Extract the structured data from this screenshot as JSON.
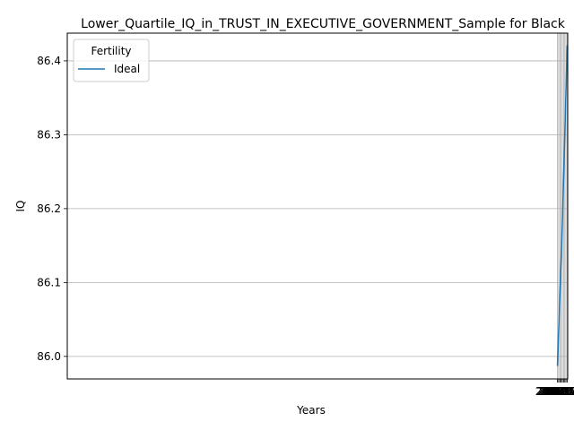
{
  "chart_data": {
    "type": "line",
    "title": "Lower_Quartile_IQ_in_TRUST_IN_EXECUTIVE_GOVERNMENT_Sample for Black",
    "xlabel": "Years",
    "ylabel": "IQ",
    "legend_title": "Fertility",
    "legend_position": "top-left",
    "grid": true,
    "xlim": [
      1967.9,
      2070.1
    ],
    "ylim": [
      85.9695,
      86.4375
    ],
    "x_ticks": [
      "2068.00",
      "2068.25",
      "2068.50",
      "2068.75",
      "2069.00",
      "2069.25",
      "2069.50",
      "2069.75",
      "2070.00"
    ],
    "y_ticks": [
      "86.0",
      "86.1",
      "86.2",
      "86.3",
      "86.4"
    ],
    "x_tick_values": [
      2068.0,
      2068.25,
      2068.5,
      2068.75,
      2069.0,
      2069.25,
      2069.5,
      2069.75,
      2070.0
    ],
    "y_tick_values": [
      86.0,
      86.1,
      86.2,
      86.3,
      86.4
    ],
    "series": [
      {
        "name": "Ideal",
        "color": "#1f77b4",
        "x": [
          2068.0,
          2069.0,
          2070.0
        ],
        "values": [
          85.987,
          86.178,
          86.421
        ]
      }
    ]
  }
}
